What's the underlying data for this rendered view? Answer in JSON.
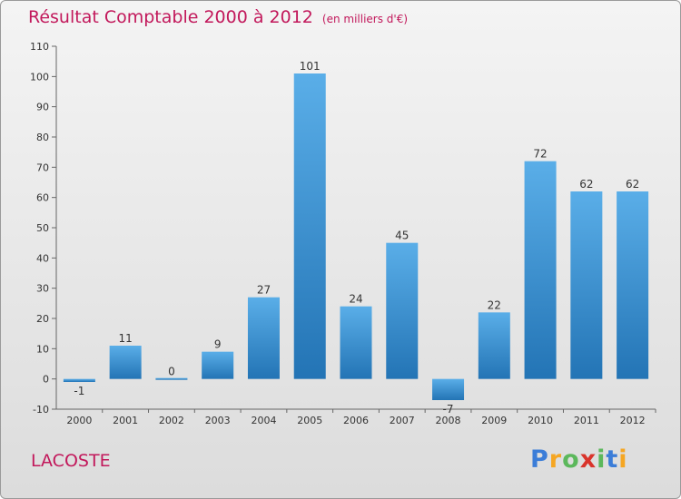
{
  "header": {
    "title": "Résultat Comptable 2000 à 2012",
    "unit": "(en milliers d'€)"
  },
  "commune": "LACOSTE",
  "brand": {
    "letters": [
      "P",
      "r",
      "o",
      "x",
      "i",
      "t",
      "i"
    ],
    "colors": [
      "#3b7dd8",
      "#f5a623",
      "#5cb85c",
      "#d9342b",
      "#5cb85c",
      "#3b7dd8",
      "#f5a623"
    ]
  },
  "colors": {
    "bar_light": "#5aaee8",
    "bar_dark": "#2374b5",
    "title": "#c2185b"
  },
  "chart_data": {
    "type": "bar",
    "title": "Résultat Comptable 2000 à 2012",
    "subtitle": "(en milliers d'€)",
    "xlabel": "",
    "ylabel": "",
    "categories": [
      "2000",
      "2001",
      "2002",
      "2003",
      "2004",
      "2005",
      "2006",
      "2007",
      "2008",
      "2009",
      "2010",
      "2011",
      "2012"
    ],
    "values": [
      -1,
      11,
      0,
      9,
      27,
      101,
      24,
      45,
      -7,
      22,
      72,
      62,
      62
    ],
    "ylim": [
      -10,
      110
    ],
    "yticks": [
      -10,
      0,
      10,
      20,
      30,
      40,
      50,
      60,
      70,
      80,
      90,
      100,
      110
    ],
    "grid": false
  }
}
